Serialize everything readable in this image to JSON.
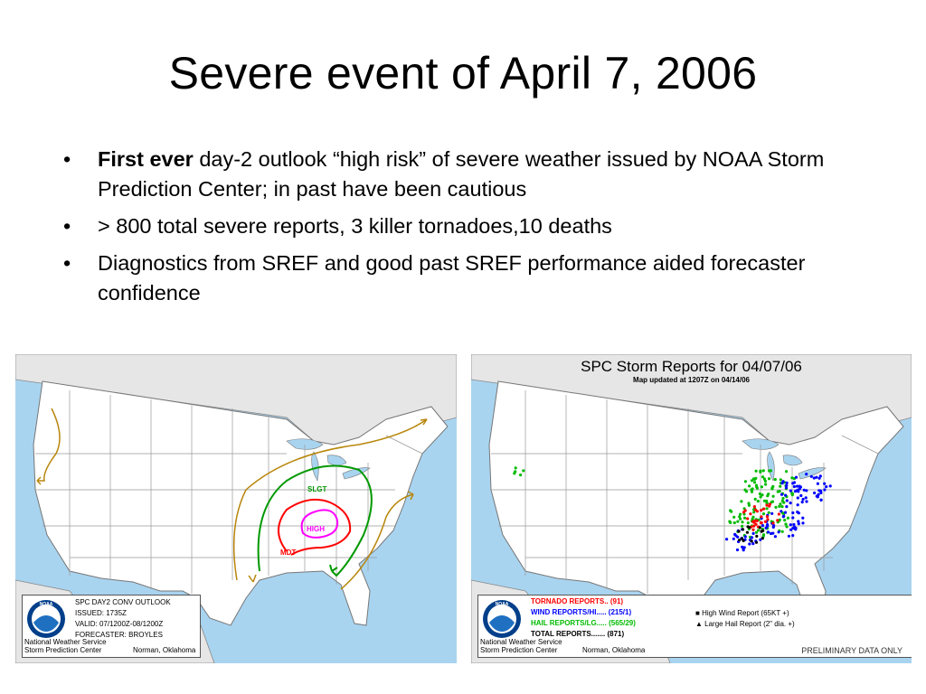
{
  "slide": {
    "title": "Severe event of April 7, 2006",
    "bullets": [
      {
        "bold": "First ever",
        "text": " day-2 outlook “high risk” of severe weather issued by NOAA Storm Prediction Center; in past have been cautious"
      },
      {
        "bold": "",
        "text": "> 800 total severe reports, 3 killer tornadoes,10 deaths"
      },
      {
        "bold": "",
        "text": "Diagnostics from SREF and good past SREF performance aided forecaster confidence"
      }
    ],
    "bullet_glyph": "•"
  },
  "outlook_map": {
    "labels": {
      "slight": "SLGT",
      "moderate": "MDT",
      "high": "HIGH"
    },
    "legend": {
      "line1": "SPC DAY2 CONV OUTLOOK",
      "line2": "ISSUED: 1735Z",
      "line3": "VALID: 07/1200Z-08/1200Z",
      "line4": "FORECASTER: BROYLES",
      "org1": "National Weather Service",
      "org2": "Storm Prediction Center",
      "location": "Norman, Oklahoma",
      "logo_text": "NOAA"
    },
    "colors": {
      "general": "#b8860b",
      "slight": "#009900",
      "moderate": "#ff0000",
      "high": "#ff00ff"
    }
  },
  "reports_map": {
    "title": "SPC Storm Reports for 04/07/06",
    "subtitle": "Map updated at 1207Z on 04/14/06",
    "legend": {
      "tornado": "TORNADO REPORTS.. (91)",
      "wind": "WIND REPORTS/HI..... (215/1)",
      "hail": "HAIL REPORTS/LG..... (565/29)",
      "total": "TOTAL REPORTS....... (871)",
      "high_wind": "High Wind Report (65KT +)",
      "large_hail": "Large Hail Report (2\" dia. +)",
      "org1": "National Weather Service",
      "org2": "Storm Prediction Center",
      "location": "Norman, Oklahoma",
      "logo_text": "NOAA"
    },
    "prelim": "PRELIMINARY DATA ONLY",
    "colors": {
      "tornado": "#ff0000",
      "wind": "#0000ff",
      "hail": "#00bb00",
      "total": "#000000"
    }
  }
}
